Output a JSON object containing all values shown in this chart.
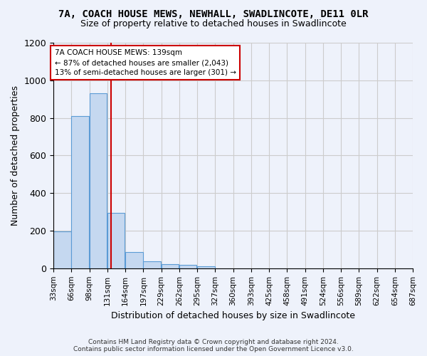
{
  "title": "7A, COACH HOUSE MEWS, NEWHALL, SWADLINCOTE, DE11 0LR",
  "subtitle": "Size of property relative to detached houses in Swadlincote",
  "xlabel": "Distribution of detached houses by size in Swadlincote",
  "ylabel": "Number of detached properties",
  "bar_color": "#c5d8f0",
  "bar_edge_color": "#5b9bd5",
  "vline_color": "#cc0000",
  "vline_x": 139,
  "bins": [
    33,
    66,
    99,
    132,
    165,
    198,
    231,
    264,
    297,
    330,
    363,
    396,
    429,
    462,
    495,
    528,
    561,
    594,
    627,
    660,
    693
  ],
  "bin_labels": [
    "33sqm",
    "66sqm",
    "98sqm",
    "131sqm",
    "164sqm",
    "197sqm",
    "229sqm",
    "262sqm",
    "295sqm",
    "327sqm",
    "360sqm",
    "393sqm",
    "425sqm",
    "458sqm",
    "491sqm",
    "524sqm",
    "556sqm",
    "589sqm",
    "622sqm",
    "654sqm",
    "687sqm"
  ],
  "bar_values": [
    195,
    810,
    930,
    295,
    88,
    37,
    22,
    18,
    12,
    0,
    0,
    0,
    0,
    0,
    0,
    0,
    0,
    0,
    0,
    0
  ],
  "ylim": [
    0,
    1200
  ],
  "yticks": [
    0,
    200,
    400,
    600,
    800,
    1000,
    1200
  ],
  "annotation_text": "7A COACH HOUSE MEWS: 139sqm\n← 87% of detached houses are smaller (2,043)\n13% of semi-detached houses are larger (301) →",
  "annotation_box_color": "#ffffff",
  "annotation_box_edge": "#cc0000",
  "footnote": "Contains HM Land Registry data © Crown copyright and database right 2024.\nContains public sector information licensed under the Open Government Licence v3.0.",
  "background_color": "#eef2fb",
  "grid_color": "#cccccc"
}
